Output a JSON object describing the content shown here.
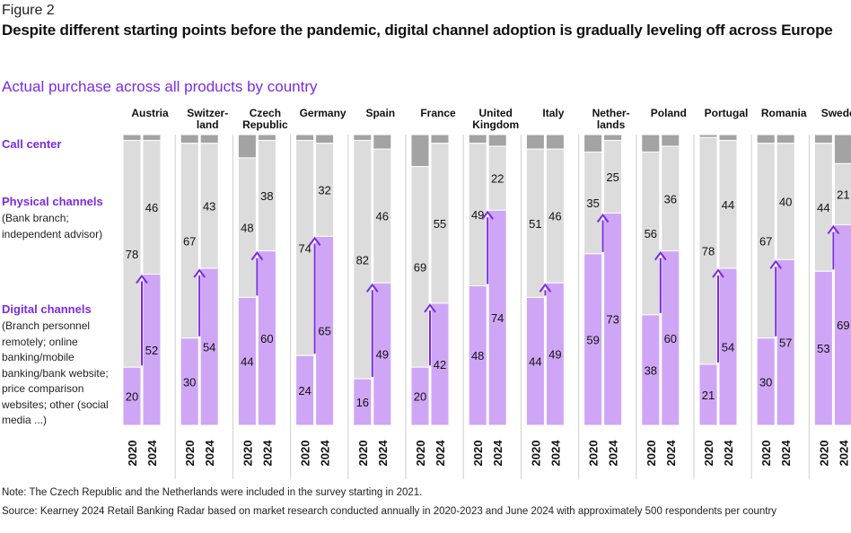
{
  "figure_label": "Figure 2",
  "title": "Despite different starting points before the pandemic, digital channel adoption is gradually leveling off across Europe",
  "subtitle": "Actual purchase across all products by country",
  "categories": {
    "call_center": "Call center",
    "physical": {
      "label": "Physical channels",
      "sub": "(Bank branch; independent advisor)"
    },
    "digital": {
      "label": "Digital channels",
      "sub": "(Branch personnel remotely; online banking/mobile banking/bank website; price comparison websites; other (social media ...)"
    }
  },
  "note": "Note: The Czech Republic and the Netherlands were included in the survey starting in 2021.",
  "source": "Source: Kearney 2024 Retail Banking Radar based on market research conducted annually in 2020-2023 and June 2024 with approximately 500 respondents per country",
  "colors": {
    "digital": "#CFA6F5",
    "physical": "#DCDCDC",
    "call_center": "#A3A3A3",
    "arrow": "#7B2BE2",
    "accent": "#7B2BE2"
  },
  "chart_data": {
    "type": "bar",
    "stacked": true,
    "years": [
      "2020",
      "2024"
    ],
    "ylim": [
      0,
      100
    ],
    "countries": [
      {
        "name": "Austria",
        "digital": [
          20,
          52
        ],
        "physical": [
          78,
          46
        ]
      },
      {
        "name": "Switzer-\nland",
        "digital": [
          30,
          54
        ],
        "physical": [
          67,
          43
        ]
      },
      {
        "name": "Czech\nRepublic",
        "digital": [
          44,
          60
        ],
        "physical": [
          48,
          38
        ]
      },
      {
        "name": "Germany",
        "digital": [
          24,
          65
        ],
        "physical": [
          74,
          32
        ]
      },
      {
        "name": "Spain",
        "digital": [
          16,
          49
        ],
        "physical": [
          82,
          46
        ]
      },
      {
        "name": "France",
        "digital": [
          20,
          42
        ],
        "physical": [
          69,
          55
        ]
      },
      {
        "name": "United\nKingdom",
        "digital": [
          48,
          74
        ],
        "physical": [
          49,
          22
        ]
      },
      {
        "name": "Italy",
        "digital": [
          44,
          49
        ],
        "physical": [
          51,
          46
        ]
      },
      {
        "name": "Nether-\nlands",
        "digital": [
          59,
          73
        ],
        "physical": [
          35,
          25
        ]
      },
      {
        "name": "Poland",
        "digital": [
          38,
          60
        ],
        "physical": [
          56,
          36
        ]
      },
      {
        "name": "Portugal",
        "digital": [
          21,
          54
        ],
        "physical": [
          78,
          44
        ]
      },
      {
        "name": "Romania",
        "digital": [
          30,
          57
        ],
        "physical": [
          67,
          40
        ]
      },
      {
        "name": "Sweden",
        "digital": [
          53,
          69
        ],
        "physical": [
          44,
          21
        ]
      }
    ]
  }
}
